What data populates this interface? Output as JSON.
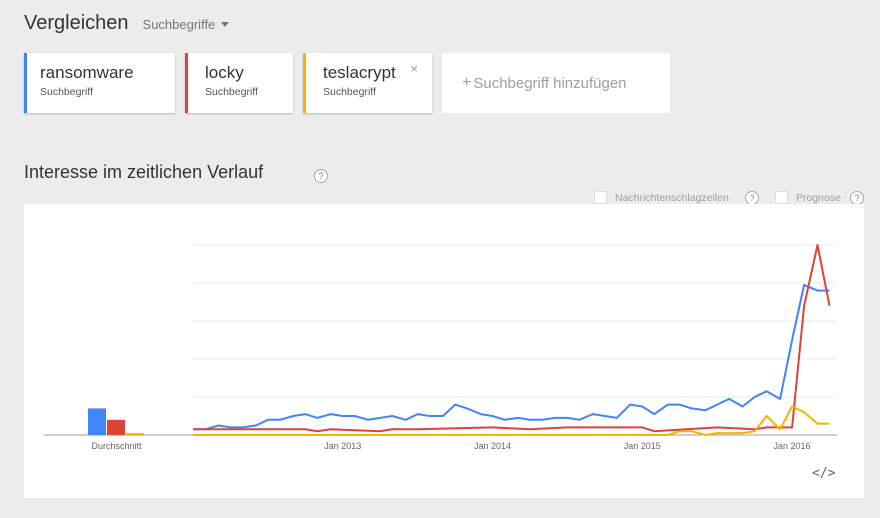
{
  "header": {
    "title": "Vergleichen",
    "dropdown_label": "Suchbegriffe"
  },
  "terms": [
    {
      "name": "ransomware",
      "subtitle": "Suchbegriff",
      "color": "#4285f4"
    },
    {
      "name": "locky",
      "subtitle": "Suchbegriff",
      "color": "#db4437"
    },
    {
      "name": "teslacrypt",
      "subtitle": "Suchbegriff",
      "color": "#f4b400",
      "close": "×"
    }
  ],
  "add_term": {
    "plus": "+",
    "label": "Suchbegriff hinzufügen"
  },
  "section": {
    "title": "Interesse im zeitlichen Verlauf",
    "help": "?"
  },
  "options": [
    {
      "label": "Nachrichtenschlagzeilen",
      "help": "?"
    },
    {
      "label": "Prognose",
      "help": "?"
    }
  ],
  "embed": "</>",
  "chart_data": {
    "type": "line",
    "x_ticks": [
      "Jan 2013",
      "Jan 2014",
      "Jan 2015",
      "Jan 2016"
    ],
    "x_tick_positions": [
      2013.0,
      2014.0,
      2015.0,
      2016.0
    ],
    "x_range": [
      2012.0,
      2016.3
    ],
    "ylim": [
      0,
      100
    ],
    "grid": true,
    "average_label": "Durchschnitt",
    "averages": [
      {
        "name": "ransomware",
        "value": 14,
        "color": "#4285f4"
      },
      {
        "name": "locky",
        "value": 8,
        "color": "#db4437"
      },
      {
        "name": "teslacrypt",
        "value": 1,
        "color": "#f4b400"
      }
    ],
    "series": [
      {
        "name": "ransomware",
        "color": "#4285f4",
        "x": [
          2012.0,
          2012.08,
          2012.17,
          2012.25,
          2012.33,
          2012.42,
          2012.5,
          2012.58,
          2012.67,
          2012.75,
          2012.83,
          2012.92,
          2013.0,
          2013.08,
          2013.17,
          2013.25,
          2013.33,
          2013.42,
          2013.5,
          2013.58,
          2013.67,
          2013.75,
          2013.83,
          2013.92,
          2014.0,
          2014.08,
          2014.17,
          2014.25,
          2014.33,
          2014.42,
          2014.5,
          2014.58,
          2014.67,
          2014.75,
          2014.83,
          2014.92,
          2015.0,
          2015.08,
          2015.17,
          2015.25,
          2015.33,
          2015.42,
          2015.5,
          2015.58,
          2015.67,
          2015.75,
          2015.83,
          2015.92,
          2016.0,
          2016.08,
          2016.17,
          2016.25
        ],
        "values": [
          3,
          3,
          5,
          4,
          4,
          5,
          8,
          8,
          10,
          11,
          9,
          11,
          10,
          10,
          8,
          9,
          10,
          8,
          11,
          10,
          10,
          16,
          14,
          11,
          10,
          8,
          9,
          8,
          8,
          9,
          9,
          8,
          11,
          10,
          9,
          16,
          15,
          11,
          16,
          16,
          14,
          13,
          16,
          19,
          15,
          20,
          23,
          19,
          50,
          79,
          76,
          76
        ]
      },
      {
        "name": "locky",
        "color": "#db4437",
        "x": [
          2012.0,
          2012.5,
          2012.75,
          2012.83,
          2012.92,
          2013.25,
          2013.33,
          2013.5,
          2014.0,
          2014.25,
          2014.5,
          2015.0,
          2015.08,
          2015.5,
          2015.75,
          2015.83,
          2015.92,
          2016.0,
          2016.08,
          2016.17,
          2016.25
        ],
        "values": [
          3,
          3,
          3,
          2,
          3,
          2,
          3,
          3,
          4,
          3,
          4,
          4,
          2,
          4,
          3,
          4,
          4,
          4,
          68,
          100,
          68
        ]
      },
      {
        "name": "teslacrypt",
        "color": "#f4b400",
        "x": [
          2012.0,
          2015.17,
          2015.25,
          2015.33,
          2015.42,
          2015.5,
          2015.58,
          2015.67,
          2015.75,
          2015.83,
          2015.92,
          2016.0,
          2016.08,
          2016.17,
          2016.25
        ],
        "values": [
          0,
          0,
          2,
          2,
          0,
          1,
          1,
          1,
          2,
          10,
          3,
          15,
          12,
          6,
          6
        ]
      }
    ]
  }
}
